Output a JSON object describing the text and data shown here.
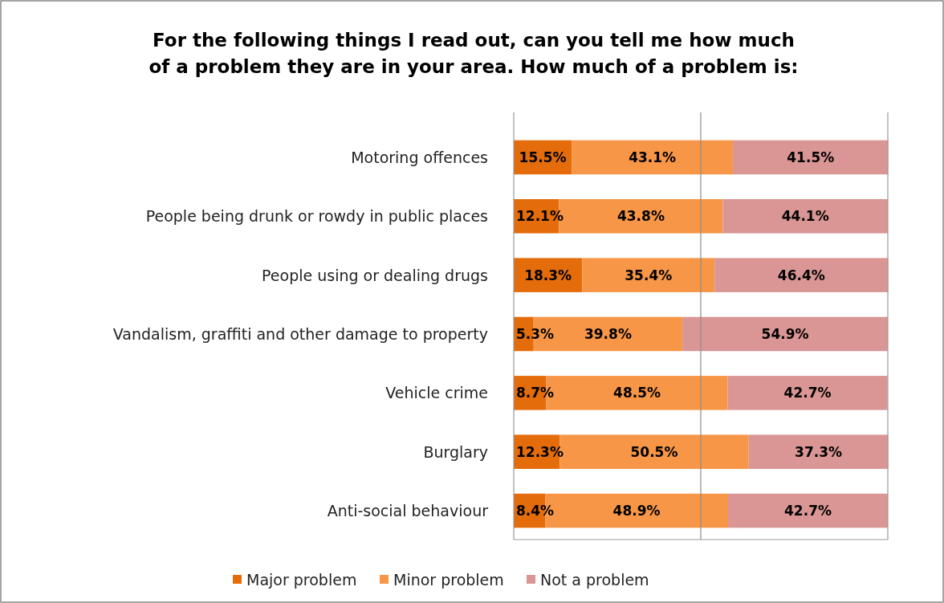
{
  "chart_data": {
    "type": "bar",
    "orientation": "horizontal",
    "stacked": true,
    "title": "For the following things I read out, can you tell me how much of a problem they are in your area. How much of a problem is:",
    "categories": [
      "Motoring offences",
      "People being drunk or rowdy in public places",
      "People using or dealing drugs",
      "Vandalism, graffiti and other damage to property",
      "Vehicle crime",
      "Burglary",
      "Anti-social behaviour"
    ],
    "series": [
      {
        "name": "Major problem",
        "color": "#e46c0a",
        "values": [
          15.5,
          12.1,
          18.3,
          5.3,
          8.7,
          12.3,
          8.4
        ],
        "value_labels": [
          "15.5%",
          "12.1%",
          "18.3%",
          "5.3%",
          "8.7%",
          "12.3%",
          "8.4%"
        ]
      },
      {
        "name": "Minor problem",
        "color": "#f79646",
        "values": [
          43.1,
          43.8,
          35.4,
          39.8,
          48.5,
          50.5,
          48.9
        ],
        "value_labels": [
          "43.1%",
          "43.8%",
          "35.4%",
          "39.8%",
          "48.5%",
          "50.5%",
          "48.9%"
        ]
      },
      {
        "name": "Not a problem",
        "color": "#d99694",
        "values": [
          41.5,
          44.1,
          46.4,
          54.9,
          42.7,
          37.3,
          42.7
        ],
        "value_labels": [
          "41.5%",
          "44.1%",
          "46.4%",
          "54.9%",
          "42.7%",
          "37.3%",
          "42.7%"
        ]
      }
    ],
    "xlim": [
      0,
      100
    ],
    "ref_lines": [
      {
        "axis": "x",
        "value": 50,
        "color": "#8c8c8c"
      }
    ],
    "legend": "bottom",
    "tick_labels": "y"
  }
}
